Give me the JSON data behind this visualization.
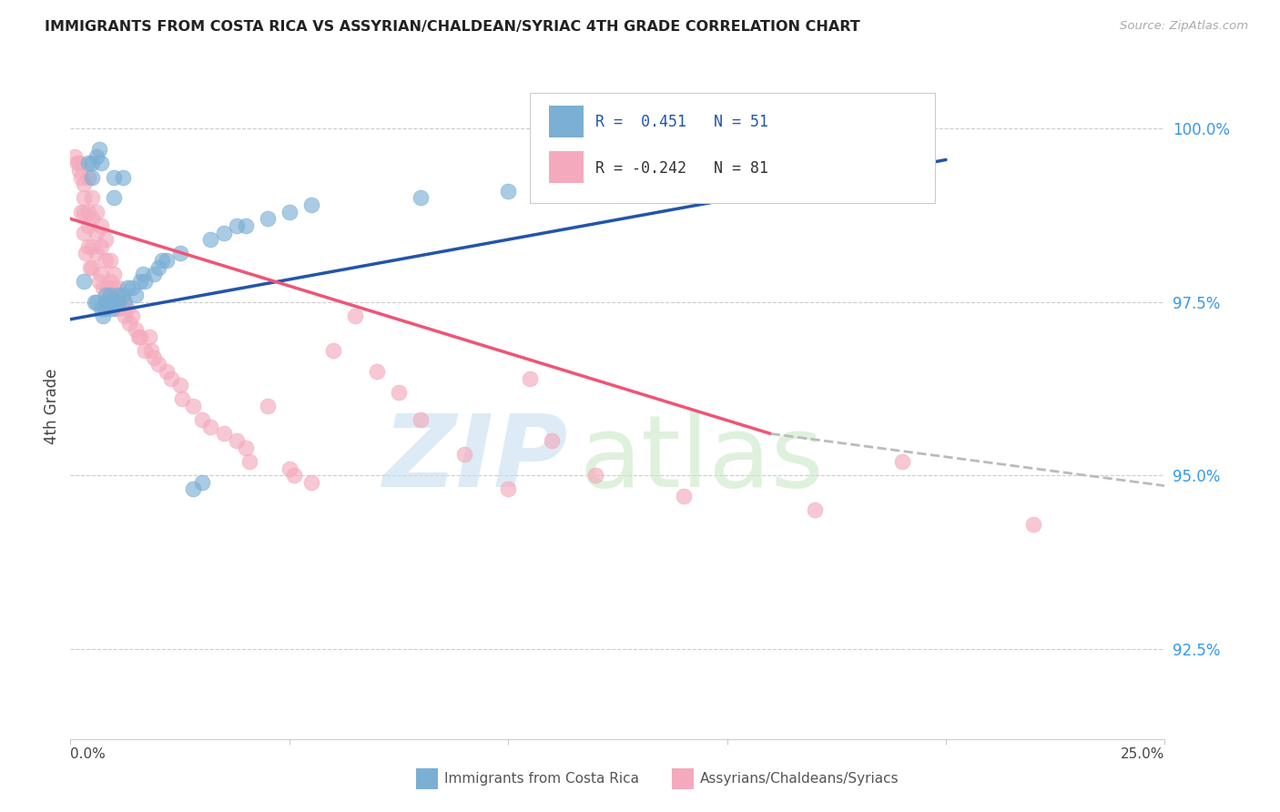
{
  "title": "IMMIGRANTS FROM COSTA RICA VS ASSYRIAN/CHALDEAN/SYRIAC 4TH GRADE CORRELATION CHART",
  "source": "Source: ZipAtlas.com",
  "ylabel": "4th Grade",
  "ylabel_ticks": [
    92.5,
    95.0,
    97.5,
    100.0
  ],
  "ylabel_tick_labels": [
    "92.5%",
    "95.0%",
    "97.5%",
    "100.0%"
  ],
  "xmin": 0.0,
  "xmax": 25.0,
  "ymin": 91.2,
  "ymax": 100.8,
  "blue_R": 0.451,
  "blue_N": 51,
  "pink_R": -0.242,
  "pink_N": 81,
  "blue_color": "#7BAFD4",
  "pink_color": "#F4AABC",
  "blue_line_color": "#2255AA",
  "pink_line_color": "#EE5577",
  "legend_blue_label": "Immigrants from Costa Rica",
  "legend_pink_label": "Assyrians/Chaldeans/Syriacs",
  "blue_line_x0": 0.0,
  "blue_line_y0": 97.25,
  "blue_line_x1": 20.0,
  "blue_line_y1": 99.55,
  "pink_solid_x0": 0.0,
  "pink_solid_y0": 98.7,
  "pink_solid_x1": 16.0,
  "pink_solid_y1": 95.6,
  "pink_dash_x0": 16.0,
  "pink_dash_y0": 95.6,
  "pink_dash_x1": 25.0,
  "pink_dash_y1": 94.85,
  "blue_x": [
    0.3,
    0.4,
    0.5,
    0.5,
    0.55,
    0.6,
    0.6,
    0.65,
    0.7,
    0.7,
    0.75,
    0.8,
    0.8,
    0.8,
    0.85,
    0.9,
    0.9,
    0.9,
    0.95,
    1.0,
    1.0,
    1.0,
    1.1,
    1.1,
    1.2,
    1.2,
    1.25,
    1.3,
    1.4,
    1.5,
    1.6,
    1.65,
    1.7,
    1.9,
    2.0,
    2.1,
    2.2,
    2.5,
    2.8,
    3.0,
    3.2,
    3.5,
    3.8,
    4.0,
    4.5,
    5.0,
    5.5,
    8.0,
    10.0,
    19.0,
    19.5
  ],
  "blue_y": [
    97.8,
    99.5,
    99.3,
    99.5,
    97.5,
    97.5,
    99.6,
    99.7,
    99.5,
    97.4,
    97.3,
    97.6,
    97.5,
    97.4,
    97.5,
    97.5,
    97.6,
    97.5,
    97.4,
    99.3,
    99.0,
    97.5,
    97.6,
    97.5,
    99.3,
    97.6,
    97.5,
    97.7,
    97.7,
    97.6,
    97.8,
    97.9,
    97.8,
    97.9,
    98.0,
    98.1,
    98.1,
    98.2,
    94.8,
    94.9,
    98.4,
    98.5,
    98.6,
    98.6,
    98.7,
    98.8,
    98.9,
    99.0,
    99.1,
    99.5,
    99.3
  ],
  "pink_x": [
    0.1,
    0.15,
    0.2,
    0.2,
    0.25,
    0.25,
    0.3,
    0.3,
    0.3,
    0.3,
    0.35,
    0.4,
    0.4,
    0.4,
    0.4,
    0.45,
    0.5,
    0.5,
    0.5,
    0.5,
    0.6,
    0.6,
    0.6,
    0.65,
    0.7,
    0.7,
    0.7,
    0.75,
    0.8,
    0.8,
    0.85,
    0.9,
    0.9,
    0.95,
    1.0,
    1.0,
    1.05,
    1.1,
    1.1,
    1.2,
    1.25,
    1.3,
    1.35,
    1.4,
    1.5,
    1.55,
    1.6,
    1.7,
    1.8,
    1.85,
    1.9,
    2.0,
    2.2,
    2.3,
    2.5,
    2.55,
    2.8,
    3.0,
    3.2,
    3.5,
    3.8,
    4.0,
    4.1,
    4.5,
    5.0,
    5.1,
    5.5,
    6.0,
    6.5,
    7.0,
    7.5,
    8.0,
    9.0,
    10.0,
    10.5,
    11.0,
    12.0,
    14.0,
    17.0,
    19.0,
    22.0
  ],
  "pink_y": [
    99.6,
    99.5,
    99.5,
    99.4,
    99.3,
    98.8,
    99.2,
    99.0,
    98.8,
    98.5,
    98.2,
    99.3,
    98.8,
    98.6,
    98.3,
    98.0,
    99.0,
    98.7,
    98.3,
    98.0,
    98.8,
    98.5,
    98.2,
    97.8,
    98.6,
    98.3,
    97.9,
    97.7,
    98.4,
    98.1,
    97.7,
    98.1,
    97.8,
    97.5,
    97.9,
    97.7,
    97.4,
    97.7,
    97.4,
    97.5,
    97.3,
    97.4,
    97.2,
    97.3,
    97.1,
    97.0,
    97.0,
    96.8,
    97.0,
    96.8,
    96.7,
    96.6,
    96.5,
    96.4,
    96.3,
    96.1,
    96.0,
    95.8,
    95.7,
    95.6,
    95.5,
    95.4,
    95.2,
    96.0,
    95.1,
    95.0,
    94.9,
    96.8,
    97.3,
    96.5,
    96.2,
    95.8,
    95.3,
    94.8,
    96.4,
    95.5,
    95.0,
    94.7,
    94.5,
    95.2,
    94.3
  ]
}
